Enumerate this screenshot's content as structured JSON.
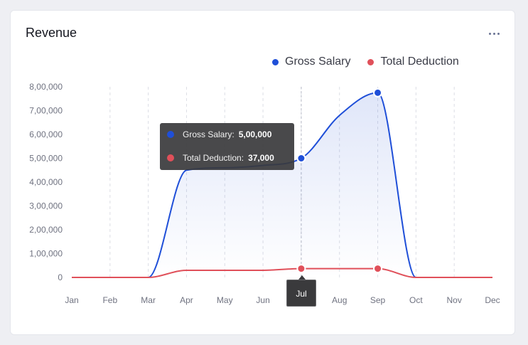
{
  "card": {
    "title": "Revenue",
    "more_icon": "more-horizontal-icon"
  },
  "legend": [
    {
      "label": "Gross Salary",
      "color": "#1f4fd8"
    },
    {
      "label": "Total Deduction",
      "color": "#e0505a"
    }
  ],
  "tooltip": {
    "rows": [
      {
        "label": "Gross Salary:",
        "value": "5,00,000",
        "color": "#1f4fd8"
      },
      {
        "label": "Total Deduction:",
        "value": "37,000",
        "color": "#e0505a"
      }
    ],
    "x_label": "Jul"
  },
  "chart_data": {
    "type": "area",
    "title": "Revenue",
    "categories": [
      "Jan",
      "Feb",
      "Mar",
      "Apr",
      "May",
      "Jun",
      "Jul",
      "Aug",
      "Sep",
      "Oct",
      "Nov",
      "Dec"
    ],
    "series": [
      {
        "name": "Gross Salary",
        "color": "#1f4fd8",
        "values": [
          0,
          0,
          0,
          450000,
          460000,
          470000,
          500000,
          680000,
          775000,
          0,
          0,
          0
        ]
      },
      {
        "name": "Total Deduction",
        "color": "#e0505a",
        "values": [
          0,
          0,
          0,
          30000,
          30000,
          30000,
          37000,
          37000,
          37000,
          0,
          0,
          0
        ]
      }
    ],
    "yticks": [
      "0",
      "1,00,000",
      "2,00,000",
      "3,00,000",
      "4,00,000",
      "5,00,000",
      "6,00,000",
      "7,00,000",
      "8,00,000"
    ],
    "ylim": [
      0,
      800000
    ],
    "grid": "vertical dashed",
    "legend_position": "top-right",
    "highlighted_category": "Jul"
  }
}
